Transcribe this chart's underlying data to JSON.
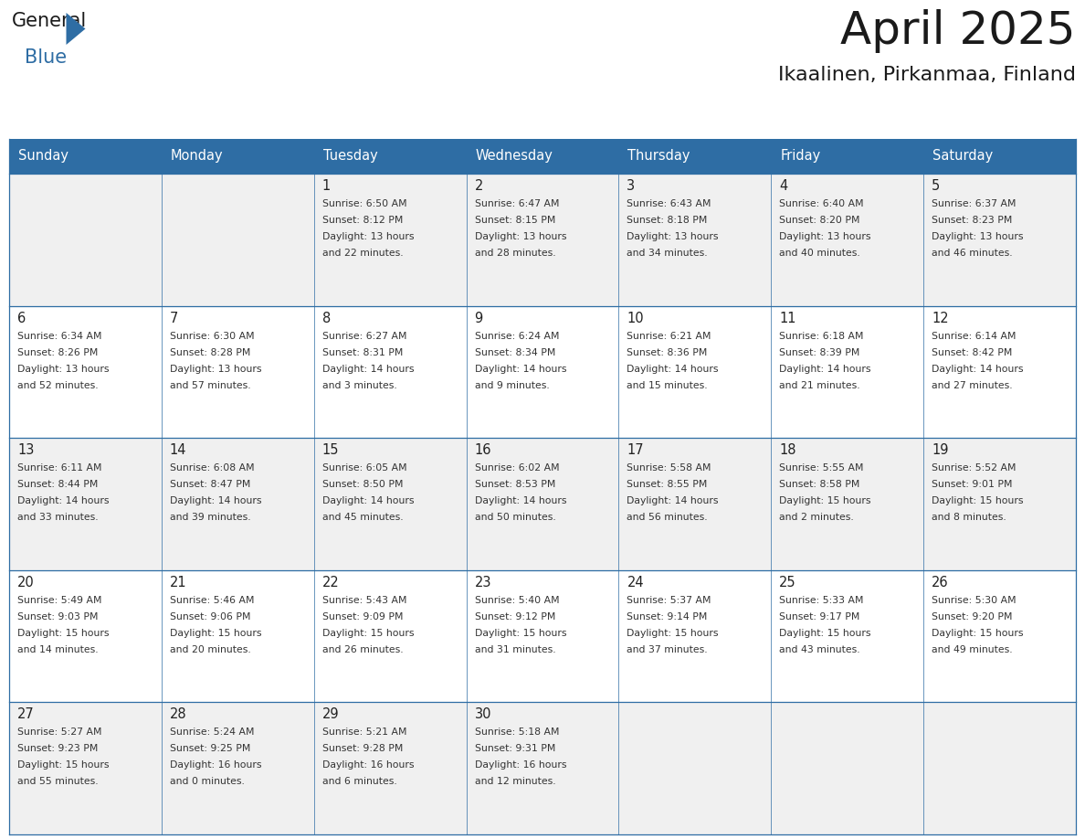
{
  "title": "April 2025",
  "subtitle": "Ikaalinen, Pirkanmaa, Finland",
  "header_bg": "#2E6DA4",
  "header_text_color": "#FFFFFF",
  "cell_bg_light": "#F0F0F0",
  "cell_bg_white": "#FFFFFF",
  "border_color": "#2E6DA4",
  "day_names": [
    "Sunday",
    "Monday",
    "Tuesday",
    "Wednesday",
    "Thursday",
    "Friday",
    "Saturday"
  ],
  "text_color": "#333333",
  "day_num_color": "#222222",
  "logo_general_color": "#1a1a1a",
  "logo_blue_color": "#2E6DA4",
  "weeks": [
    [
      {
        "date": "",
        "sunrise": "",
        "sunset": "",
        "daylight_line1": "",
        "daylight_line2": ""
      },
      {
        "date": "",
        "sunrise": "",
        "sunset": "",
        "daylight_line1": "",
        "daylight_line2": ""
      },
      {
        "date": "1",
        "sunrise": "Sunrise: 6:50 AM",
        "sunset": "Sunset: 8:12 PM",
        "daylight_line1": "Daylight: 13 hours",
        "daylight_line2": "and 22 minutes."
      },
      {
        "date": "2",
        "sunrise": "Sunrise: 6:47 AM",
        "sunset": "Sunset: 8:15 PM",
        "daylight_line1": "Daylight: 13 hours",
        "daylight_line2": "and 28 minutes."
      },
      {
        "date": "3",
        "sunrise": "Sunrise: 6:43 AM",
        "sunset": "Sunset: 8:18 PM",
        "daylight_line1": "Daylight: 13 hours",
        "daylight_line2": "and 34 minutes."
      },
      {
        "date": "4",
        "sunrise": "Sunrise: 6:40 AM",
        "sunset": "Sunset: 8:20 PM",
        "daylight_line1": "Daylight: 13 hours",
        "daylight_line2": "and 40 minutes."
      },
      {
        "date": "5",
        "sunrise": "Sunrise: 6:37 AM",
        "sunset": "Sunset: 8:23 PM",
        "daylight_line1": "Daylight: 13 hours",
        "daylight_line2": "and 46 minutes."
      }
    ],
    [
      {
        "date": "6",
        "sunrise": "Sunrise: 6:34 AM",
        "sunset": "Sunset: 8:26 PM",
        "daylight_line1": "Daylight: 13 hours",
        "daylight_line2": "and 52 minutes."
      },
      {
        "date": "7",
        "sunrise": "Sunrise: 6:30 AM",
        "sunset": "Sunset: 8:28 PM",
        "daylight_line1": "Daylight: 13 hours",
        "daylight_line2": "and 57 minutes."
      },
      {
        "date": "8",
        "sunrise": "Sunrise: 6:27 AM",
        "sunset": "Sunset: 8:31 PM",
        "daylight_line1": "Daylight: 14 hours",
        "daylight_line2": "and 3 minutes."
      },
      {
        "date": "9",
        "sunrise": "Sunrise: 6:24 AM",
        "sunset": "Sunset: 8:34 PM",
        "daylight_line1": "Daylight: 14 hours",
        "daylight_line2": "and 9 minutes."
      },
      {
        "date": "10",
        "sunrise": "Sunrise: 6:21 AM",
        "sunset": "Sunset: 8:36 PM",
        "daylight_line1": "Daylight: 14 hours",
        "daylight_line2": "and 15 minutes."
      },
      {
        "date": "11",
        "sunrise": "Sunrise: 6:18 AM",
        "sunset": "Sunset: 8:39 PM",
        "daylight_line1": "Daylight: 14 hours",
        "daylight_line2": "and 21 minutes."
      },
      {
        "date": "12",
        "sunrise": "Sunrise: 6:14 AM",
        "sunset": "Sunset: 8:42 PM",
        "daylight_line1": "Daylight: 14 hours",
        "daylight_line2": "and 27 minutes."
      }
    ],
    [
      {
        "date": "13",
        "sunrise": "Sunrise: 6:11 AM",
        "sunset": "Sunset: 8:44 PM",
        "daylight_line1": "Daylight: 14 hours",
        "daylight_line2": "and 33 minutes."
      },
      {
        "date": "14",
        "sunrise": "Sunrise: 6:08 AM",
        "sunset": "Sunset: 8:47 PM",
        "daylight_line1": "Daylight: 14 hours",
        "daylight_line2": "and 39 minutes."
      },
      {
        "date": "15",
        "sunrise": "Sunrise: 6:05 AM",
        "sunset": "Sunset: 8:50 PM",
        "daylight_line1": "Daylight: 14 hours",
        "daylight_line2": "and 45 minutes."
      },
      {
        "date": "16",
        "sunrise": "Sunrise: 6:02 AM",
        "sunset": "Sunset: 8:53 PM",
        "daylight_line1": "Daylight: 14 hours",
        "daylight_line2": "and 50 minutes."
      },
      {
        "date": "17",
        "sunrise": "Sunrise: 5:58 AM",
        "sunset": "Sunset: 8:55 PM",
        "daylight_line1": "Daylight: 14 hours",
        "daylight_line2": "and 56 minutes."
      },
      {
        "date": "18",
        "sunrise": "Sunrise: 5:55 AM",
        "sunset": "Sunset: 8:58 PM",
        "daylight_line1": "Daylight: 15 hours",
        "daylight_line2": "and 2 minutes."
      },
      {
        "date": "19",
        "sunrise": "Sunrise: 5:52 AM",
        "sunset": "Sunset: 9:01 PM",
        "daylight_line1": "Daylight: 15 hours",
        "daylight_line2": "and 8 minutes."
      }
    ],
    [
      {
        "date": "20",
        "sunrise": "Sunrise: 5:49 AM",
        "sunset": "Sunset: 9:03 PM",
        "daylight_line1": "Daylight: 15 hours",
        "daylight_line2": "and 14 minutes."
      },
      {
        "date": "21",
        "sunrise": "Sunrise: 5:46 AM",
        "sunset": "Sunset: 9:06 PM",
        "daylight_line1": "Daylight: 15 hours",
        "daylight_line2": "and 20 minutes."
      },
      {
        "date": "22",
        "sunrise": "Sunrise: 5:43 AM",
        "sunset": "Sunset: 9:09 PM",
        "daylight_line1": "Daylight: 15 hours",
        "daylight_line2": "and 26 minutes."
      },
      {
        "date": "23",
        "sunrise": "Sunrise: 5:40 AM",
        "sunset": "Sunset: 9:12 PM",
        "daylight_line1": "Daylight: 15 hours",
        "daylight_line2": "and 31 minutes."
      },
      {
        "date": "24",
        "sunrise": "Sunrise: 5:37 AM",
        "sunset": "Sunset: 9:14 PM",
        "daylight_line1": "Daylight: 15 hours",
        "daylight_line2": "and 37 minutes."
      },
      {
        "date": "25",
        "sunrise": "Sunrise: 5:33 AM",
        "sunset": "Sunset: 9:17 PM",
        "daylight_line1": "Daylight: 15 hours",
        "daylight_line2": "and 43 minutes."
      },
      {
        "date": "26",
        "sunrise": "Sunrise: 5:30 AM",
        "sunset": "Sunset: 9:20 PM",
        "daylight_line1": "Daylight: 15 hours",
        "daylight_line2": "and 49 minutes."
      }
    ],
    [
      {
        "date": "27",
        "sunrise": "Sunrise: 5:27 AM",
        "sunset": "Sunset: 9:23 PM",
        "daylight_line1": "Daylight: 15 hours",
        "daylight_line2": "and 55 minutes."
      },
      {
        "date": "28",
        "sunrise": "Sunrise: 5:24 AM",
        "sunset": "Sunset: 9:25 PM",
        "daylight_line1": "Daylight: 16 hours",
        "daylight_line2": "and 0 minutes."
      },
      {
        "date": "29",
        "sunrise": "Sunrise: 5:21 AM",
        "sunset": "Sunset: 9:28 PM",
        "daylight_line1": "Daylight: 16 hours",
        "daylight_line2": "and 6 minutes."
      },
      {
        "date": "30",
        "sunrise": "Sunrise: 5:18 AM",
        "sunset": "Sunset: 9:31 PM",
        "daylight_line1": "Daylight: 16 hours",
        "daylight_line2": "and 12 minutes."
      },
      {
        "date": "",
        "sunrise": "",
        "sunset": "",
        "daylight_line1": "",
        "daylight_line2": ""
      },
      {
        "date": "",
        "sunrise": "",
        "sunset": "",
        "daylight_line1": "",
        "daylight_line2": ""
      },
      {
        "date": "",
        "sunrise": "",
        "sunset": "",
        "daylight_line1": "",
        "daylight_line2": ""
      }
    ]
  ]
}
